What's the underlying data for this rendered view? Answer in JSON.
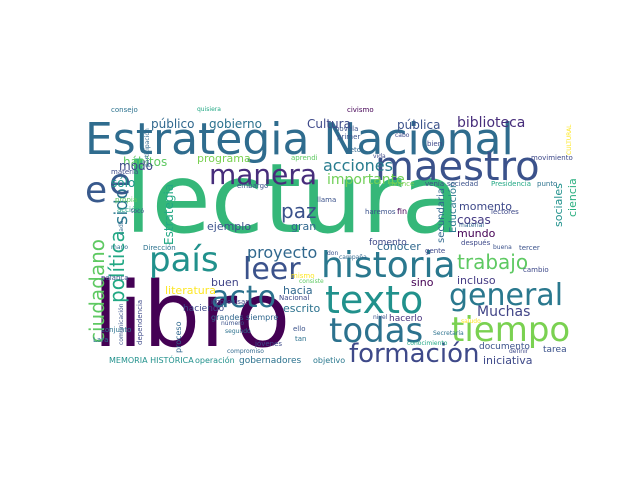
{
  "words": [
    {
      "text": "lectura",
      "color": "#35b779"
    },
    {
      "text": "libro",
      "color": "#440154"
    },
    {
      "text": "Estrategia Nacional",
      "color": "#2f6c8e"
    },
    {
      "text": "maestro",
      "color": "#3b528b"
    },
    {
      "text": "historia",
      "color": "#2a788e"
    },
    {
      "text": "texto",
      "color": "#21918c"
    },
    {
      "text": "tiempo",
      "color": "#7ad151"
    },
    {
      "text": "todas",
      "color": "#2c728e"
    },
    {
      "text": "formación",
      "color": "#3e4989"
    },
    {
      "text": "manera",
      "color": "#472d7b"
    },
    {
      "text": "país",
      "color": "#21918c"
    },
    {
      "text": "leer",
      "color": "#3b528b"
    },
    {
      "text": "acto",
      "color": "#2c728e"
    },
    {
      "text": "general",
      "color": "#2a788e"
    },
    {
      "text": "trabajo",
      "color": "#5ec962"
    },
    {
      "text": "Muchas",
      "color": "#414487"
    },
    {
      "text": "ciudadano",
      "color": "#5ec962"
    },
    {
      "text": "política",
      "color": "#22a884"
    },
    {
      "text": "sido",
      "color": "#2a788e"
    },
    {
      "text": "e",
      "color": "#38598c"
    },
    {
      "text": "paz",
      "color": "#3b528b"
    },
    {
      "text": "proyecto",
      "color": "#31688e"
    },
    {
      "text": "acciones",
      "color": "#287c8e"
    },
    {
      "text": "importante",
      "color": "#70cf57"
    },
    {
      "text": "Cultura",
      "color": "#3e4989"
    },
    {
      "text": "biblioteca",
      "color": "#472d7b"
    },
    {
      "text": "público",
      "color": "#31688e"
    },
    {
      "text": "gobierno",
      "color": "#2c728e"
    },
    {
      "text": "pública",
      "color": "#3b528b"
    },
    {
      "text": "programa",
      "color": "#7ad151"
    },
    {
      "text": "hábitos",
      "color": "#5ec962"
    },
    {
      "text": "modo",
      "color": "#3e4989"
    },
    {
      "text": "sólo",
      "color": "#1f988b"
    },
    {
      "text": "Estrategia",
      "color": "#22a884"
    },
    {
      "text": "ejemplo",
      "color": "#3b528b"
    },
    {
      "text": "gran",
      "color": "#31688e"
    },
    {
      "text": "conocer",
      "color": "#31688e"
    },
    {
      "text": "cosas",
      "color": "#443a83"
    },
    {
      "text": "mundo",
      "color": "#440154"
    },
    {
      "text": "momento",
      "color": "#3e4989"
    },
    {
      "text": "incluso",
      "color": "#443a83"
    },
    {
      "text": "sino",
      "color": "#440154"
    },
    {
      "text": "hacia",
      "color": "#31688e"
    },
    {
      "text": "buen",
      "color": "#414487"
    },
    {
      "text": "literatura",
      "color": "#fde725"
    },
    {
      "text": "escrito",
      "color": "#2c728e"
    },
    {
      "text": "hacerlo",
      "color": "#46327e"
    },
    {
      "text": "iniciativa",
      "color": "#3e4989"
    },
    {
      "text": "documento",
      "color": "#3b528b"
    },
    {
      "text": "tarea",
      "color": "#3b528b"
    },
    {
      "text": "gobernadores",
      "color": "#2c728e"
    },
    {
      "text": "operación",
      "color": "#21918c"
    },
    {
      "text": "objetivo",
      "color": "#2a788e"
    },
    {
      "text": "MEMORIA HISTÓRICA",
      "color": "#21918c"
    },
    {
      "text": "Educación",
      "color": "#2a788e"
    },
    {
      "text": "secundaria",
      "color": "#31688e"
    },
    {
      "text": "fomento",
      "color": "#3e4989"
    },
    {
      "text": "sociales",
      "color": "#21918c"
    },
    {
      "text": "ciencia",
      "color": "#29af7f"
    },
    {
      "text": "haciendo",
      "color": "#3e4989"
    },
    {
      "text": "grandes siempre",
      "color": "#31688e"
    },
    {
      "text": "proceso",
      "color": "#31688e"
    },
    {
      "text": "consejo",
      "color": "#2c728e"
    },
    {
      "text": "quisiera",
      "color": "#22a884"
    },
    {
      "text": "civismo",
      "color": "#440154"
    },
    {
      "text": "novela",
      "color": "#3b528b"
    },
    {
      "text": "primer",
      "color": "#3b528b"
    },
    {
      "text": "reto",
      "color": "#31688e"
    },
    {
      "text": "bien",
      "color": "#3e4989"
    },
    {
      "text": "movimiento",
      "color": "#3e4989"
    },
    {
      "text": "aprendi",
      "color": "#5ec962"
    },
    {
      "text": "vida",
      "color": "#3e4989"
    },
    {
      "text": "venía",
      "color": "#3e4989"
    },
    {
      "text": "sociedad",
      "color": "#3b528b"
    },
    {
      "text": "Presidencia",
      "color": "#22a884"
    },
    {
      "text": "punto",
      "color": "#2c728e"
    },
    {
      "text": "avance",
      "color": "#7ad151"
    },
    {
      "text": "materia",
      "color": "#3e4989"
    },
    {
      "text": "embargo",
      "color": "#3b528b"
    },
    {
      "text": "propia",
      "color": "#5ec962"
    },
    {
      "text": "acción",
      "color": "#22a884"
    },
    {
      "text": "llama",
      "color": "#3b528b"
    },
    {
      "text": "haremos",
      "color": "#3b528b"
    },
    {
      "text": "fin",
      "color": "#440154"
    },
    {
      "text": "lectores",
      "color": "#3e4989"
    },
    {
      "text": "material",
      "color": "#31688e"
    },
    {
      "text": "después",
      "color": "#3e4989"
    },
    {
      "text": "gente",
      "color": "#3e4989"
    },
    {
      "text": "tercer",
      "color": "#3b528b"
    },
    {
      "text": "cambio",
      "color": "#3e4989"
    },
    {
      "text": "campaña",
      "color": "#31688e"
    },
    {
      "text": "don",
      "color": "#3b528b"
    },
    {
      "text": "mismo",
      "color": "#fde725"
    },
    {
      "text": "consiste",
      "color": "#5ec962"
    },
    {
      "text": "Nacional",
      "color": "#3e4989"
    },
    {
      "text": "nivel",
      "color": "#3b528b"
    },
    {
      "text": "segundo",
      "color": "#2c728e"
    },
    {
      "text": "ello",
      "color": "#3b528b"
    },
    {
      "text": "tan",
      "color": "#2c728e"
    },
    {
      "text": "jóvenes",
      "color": "#3e4989"
    },
    {
      "text": "número",
      "color": "#3b528b"
    },
    {
      "text": "compromiso",
      "color": "#31688e"
    },
    {
      "text": "Dirección",
      "color": "#2c728e"
    },
    {
      "text": "palanca",
      "color": "#3b528b"
    },
    {
      "text": "mano",
      "color": "#2c728e"
    },
    {
      "text": "cada",
      "color": "#31688e"
    },
    {
      "text": "conjunto",
      "color": "#2c728e"
    },
    {
      "text": "dependencia",
      "color": "#3e4989"
    },
    {
      "text": "comunicación",
      "color": "#3b528b"
    },
    {
      "text": "Lara",
      "color": "#2c728e"
    },
    {
      "text": "tocó",
      "color": "#3b528b"
    },
    {
      "text": "saludo",
      "color": "#fde725"
    },
    {
      "text": "conocimiento",
      "color": "#22a884"
    },
    {
      "text": "cabo",
      "color": "#3e4989"
    },
    {
      "text": "Secretaría",
      "color": "#2c728e"
    },
    {
      "text": "buena",
      "color": "#3b528b"
    },
    {
      "text": "improvisar",
      "color": "#3e4989"
    },
    {
      "text": "participación",
      "color": "#31688e"
    },
    {
      "text": "CULTURAL",
      "color": "#fde725"
    },
    {
      "text": "definir",
      "color": "#3e4989"
    }
  ]
}
